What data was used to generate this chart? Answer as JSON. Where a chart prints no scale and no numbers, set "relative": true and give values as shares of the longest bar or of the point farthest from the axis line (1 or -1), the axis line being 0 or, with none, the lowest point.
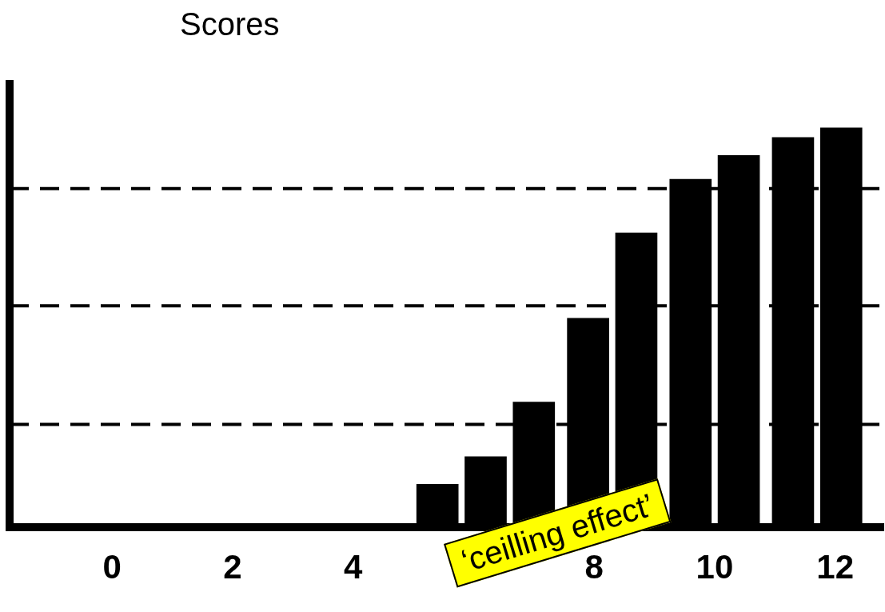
{
  "chart_data": {
    "type": "bar",
    "ylabel": "Scores",
    "relative": true,
    "x": [
      5.4,
      6.2,
      7.0,
      7.9,
      8.7,
      9.6,
      10.4,
      11.3,
      12.1
    ],
    "values": [
      0.107,
      0.176,
      0.313,
      0.523,
      0.737,
      0.871,
      0.931,
      0.976,
      1
    ],
    "color": "#000000",
    "xlim": [
      -1.7,
      12.8
    ],
    "xticks": [
      0,
      2,
      4,
      8,
      10,
      12
    ],
    "ref_lines": [
      {
        "axis": "y",
        "value": 0.257,
        "line_style": "dashed",
        "color": "#000000"
      },
      {
        "axis": "y",
        "value": 0.554,
        "line_style": "dashed",
        "color": "#000000"
      },
      {
        "axis": "y",
        "value": 0.848,
        "line_style": "dashed",
        "color": "#000000"
      }
    ],
    "annotations": [
      "‘ceilling effect’"
    ],
    "grid": false,
    "legend": false
  }
}
